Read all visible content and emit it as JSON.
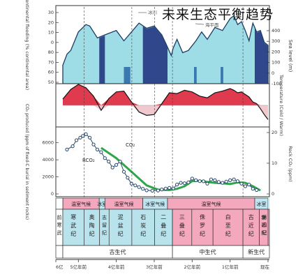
{
  "page": {
    "title": "未来生态平衡趋势"
  },
  "chart_data": [
    {
      "type": "area",
      "panel": "sea-level",
      "ylabel_left": "Continental flooding (% continental area)",
      "ylabel_right": "Sea level (m)",
      "left_ticks": [
        "30",
        "20",
        "10",
        "0",
        "80",
        "70",
        "60",
        "50"
      ],
      "right_ticks": [
        "400",
        "300",
        "200",
        "100",
        "0",
        "-100"
      ],
      "legend": [
        "冰川",
        "海平面"
      ],
      "colors": {
        "sea": "#9fdde6",
        "ice": "#263a84",
        "ice_bar": "#3a78b0"
      },
      "x": [
        541,
        530,
        520,
        500,
        480,
        470,
        450,
        430,
        400,
        380,
        360,
        340,
        320,
        300,
        280,
        270,
        255,
        250,
        240,
        225,
        210,
        190,
        175,
        160,
        140,
        120,
        100,
        90,
        80,
        70,
        60,
        50,
        40,
        30,
        20,
        10,
        0
      ],
      "values": [
        25,
        40,
        45,
        70,
        80,
        78,
        62,
        66,
        72,
        58,
        70,
        82,
        75,
        78,
        66,
        55,
        38,
        48,
        60,
        42,
        45,
        58,
        70,
        60,
        76,
        72,
        88,
        92,
        80,
        84,
        72,
        58,
        82,
        70,
        72,
        56,
        52
      ],
      "ice_ranges": [
        [
          445,
          430
        ],
        [
          330,
          265
        ],
        [
          35,
          0
        ]
      ],
      "ice_bar_ranges": [
        [
          380,
          370
        ],
        [
          372,
          363
        ],
        [
          195,
          188
        ],
        [
          125,
          118
        ]
      ]
    },
    {
      "type": "line",
      "panel": "temperature",
      "ylabel_right": "Temperature (Cold / Warm)",
      "right_ticks": [
        "Cold",
        "Warm"
      ],
      "colors": {
        "warm": "#e03a4e",
        "cold": "#f2c8cf"
      },
      "x": [
        541,
        520,
        500,
        480,
        460,
        440,
        420,
        400,
        380,
        360,
        340,
        320,
        300,
        280,
        260,
        240,
        220,
        200,
        180,
        160,
        140,
        120,
        100,
        90,
        80,
        70,
        60,
        50,
        40,
        30,
        20,
        10,
        0
      ],
      "values": [
        1.5,
        3.8,
        5.0,
        4.2,
        2.2,
        -1.2,
        1.6,
        3.2,
        3.4,
        0.8,
        -1.6,
        -2.4,
        -2.2,
        0.4,
        3.0,
        2.8,
        3.6,
        3.2,
        2.2,
        1.8,
        3.0,
        3.4,
        4.0,
        3.6,
        3.0,
        3.2,
        2.6,
        2.0,
        0.8,
        0.4,
        -0.8,
        -2.2,
        -3.4
      ]
    },
    {
      "type": "scatter",
      "panel": "co2",
      "ylabel_left": "CO₂ produced (ppm of fixed-C burial in sediment rocks)",
      "ylabel_right": "Rock CO₂ (ppm)",
      "left_ticks": [
        "6000",
        "4000",
        "2000",
        "0"
      ],
      "right_ticks": [
        "20",
        "10",
        "0"
      ],
      "series": [
        {
          "name": "RCO₂",
          "x": [
            530,
            515,
            505,
            495,
            488,
            480,
            470,
            460,
            450,
            440,
            430,
            420,
            410,
            400,
            390,
            380,
            370,
            360,
            350,
            340,
            330,
            320,
            305,
            290,
            280,
            270,
            260,
            250,
            240,
            230,
            220,
            210,
            200,
            190,
            180,
            170,
            160,
            150,
            140,
            130,
            120,
            110,
            100,
            90,
            80,
            70,
            60,
            50,
            40,
            30
          ],
          "values": [
            5200,
            5600,
            6300,
            6600,
            6800,
            7000,
            6600,
            5800,
            5200,
            4900,
            4200,
            3800,
            3100,
            3400,
            3800,
            2600,
            1900,
            1200,
            1000,
            800,
            600,
            420,
            380,
            400,
            520,
            620,
            700,
            640,
            1100,
            1300,
            1250,
            1350,
            1800,
            1600,
            1500,
            1480,
            1200,
            1700,
            1600,
            1400,
            1300,
            1450,
            1600,
            1700,
            1500,
            1200,
            900,
            1100,
            600,
            450
          ]
        },
        {
          "name": "CO₂",
          "x": [
            440,
            400,
            360,
            320,
            290,
            260,
            240,
            220,
            200,
            180,
            160,
            140,
            120,
            100,
            80,
            60,
            40,
            20
          ],
          "values": [
            5400,
            4200,
            2600,
            1000,
            500,
            450,
            600,
            900,
            1500,
            1550,
            1400,
            1300,
            1250,
            1150,
            1350,
            1300,
            900,
            400
          ]
        }
      ],
      "annotations": [
        "CO₂",
        "RCO₂"
      ],
      "colors": {
        "points": "#28476a",
        "trend": "#2ea64a"
      }
    },
    {
      "type": "table",
      "panel": "climate-state",
      "segments": [
        {
          "from": 541,
          "to": 445,
          "label": "温室气候",
          "color": "#f3a8bd"
        },
        {
          "from": 445,
          "to": 430,
          "label": "冰室",
          "color": "#bfe6f0"
        },
        {
          "from": 430,
          "to": 330,
          "label": "温室气候",
          "color": "#f3a8bd"
        },
        {
          "from": 330,
          "to": 265,
          "label": "冰室气候",
          "color": "#bfe6f0"
        },
        {
          "from": 265,
          "to": 35,
          "label": "温室气候",
          "color": "#f3a8bd"
        },
        {
          "from": 35,
          "to": 0,
          "label": "冰室",
          "color": "#bfe6f0"
        }
      ]
    },
    {
      "type": "table",
      "panel": "geologic-periods",
      "periods": [
        {
          "from": 541,
          "to": 485,
          "label": "寒武纪",
          "color": "#b8e2ec"
        },
        {
          "from": 485,
          "to": 444,
          "label": "奥陶纪",
          "color": "#b8e2ec"
        },
        {
          "from": 444,
          "to": 419,
          "label": "志留纪",
          "color": "#b8e2ec"
        },
        {
          "from": 419,
          "to": 359,
          "label": "泥盆纪",
          "color": "#b8e2ec"
        },
        {
          "from": 359,
          "to": 299,
          "label": "石炭纪",
          "color": "#b8e2ec"
        },
        {
          "from": 299,
          "to": 252,
          "label": "二叠纪",
          "color": "#b8e2ec"
        },
        {
          "from": 252,
          "to": 201,
          "label": "三叠纪",
          "color": "#f3a8bd"
        },
        {
          "from": 201,
          "to": 145,
          "label": "侏罗纪",
          "color": "#f3a8bd"
        },
        {
          "from": 145,
          "to": 66,
          "label": "白垩纪",
          "color": "#f3a8bd"
        },
        {
          "from": 66,
          "to": 23,
          "label": "古近纪",
          "color": "#f3a8bd"
        },
        {
          "from": 23,
          "to": 0,
          "label": "新近纪",
          "color": "#f3a8bd"
        }
      ],
      "precambrian_label": "前寒武",
      "quaternary_label": "第四纪",
      "eras": [
        {
          "from": 541,
          "to": 252,
          "label": "古生代"
        },
        {
          "from": 252,
          "to": 66,
          "label": "中生代"
        },
        {
          "from": 66,
          "to": 0,
          "label": "新生代"
        }
      ]
    },
    {
      "type": "table",
      "panel": "time-axis",
      "ticks": [
        {
          "value": 600,
          "label": "6亿"
        },
        {
          "value": 500,
          "label": "5亿年前"
        },
        {
          "value": 400,
          "label": "4亿年前"
        },
        {
          "value": 300,
          "label": "3亿年前"
        },
        {
          "value": 200,
          "label": "2亿年前"
        },
        {
          "value": 100,
          "label": "1亿年前"
        },
        {
          "value": 0,
          "label": "现在"
        }
      ]
    }
  ]
}
